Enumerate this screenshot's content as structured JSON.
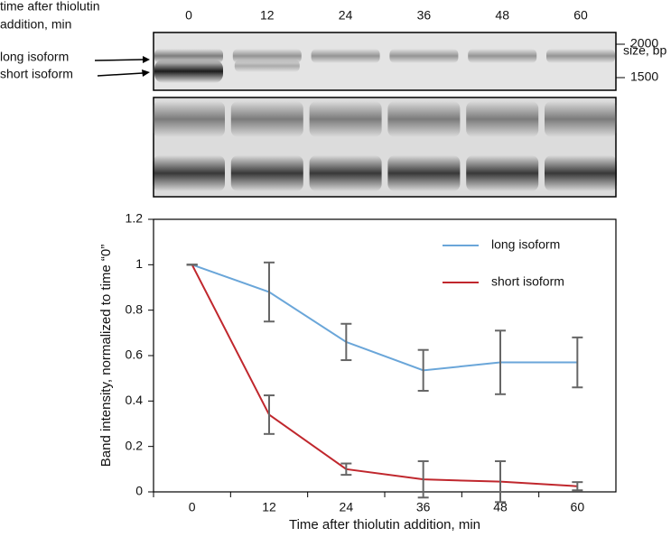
{
  "gel": {
    "header": [
      "time after thiolutin",
      "addition, min"
    ],
    "lanes": [
      "0",
      "12",
      "24",
      "36",
      "48",
      "60"
    ],
    "size_label": "size, bp",
    "markers": [
      "2000",
      "1500"
    ],
    "bands": [
      "long isoform",
      "short isoform"
    ]
  },
  "chart_data": {
    "type": "line",
    "x_label": "Time after thiolutin addition, min",
    "y_label": "Band intensity, normalized to time “0”",
    "categories": [
      "0",
      "12",
      "24",
      "36",
      "48",
      "60"
    ],
    "series": [
      {
        "name": "long isoform",
        "color": "#6aa6d9",
        "values": [
          1,
          0.88,
          0.66,
          0.535,
          0.57,
          0.57
        ],
        "errors": [
          0,
          0.13,
          0.08,
          0.09,
          0.14,
          0.11
        ]
      },
      {
        "name": "short isoform",
        "color": "#c0272d",
        "values": [
          1,
          0.34,
          0.1,
          0.055,
          0.045,
          0.025
        ],
        "errors": [
          0,
          0.085,
          0.025,
          0.08,
          0.09,
          0.018
        ]
      }
    ],
    "ylim": [
      0,
      1.2
    ],
    "yticks": [
      0,
      0.2,
      0.4,
      0.6,
      0.8,
      1,
      1.2
    ],
    "legend": "upper right",
    "error_color": "#666666"
  }
}
